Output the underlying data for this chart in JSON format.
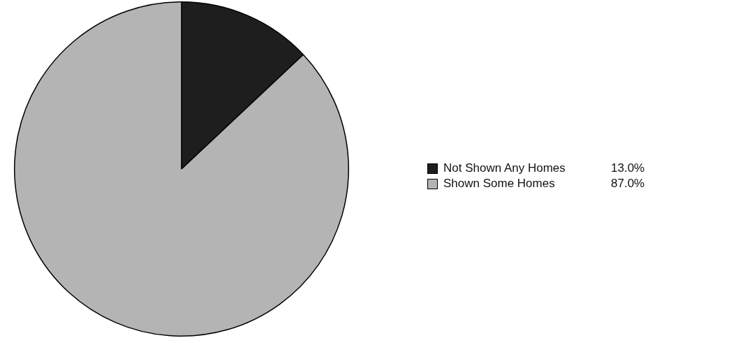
{
  "chart_data": {
    "type": "pie",
    "categories": [
      "Not Shown Any Homes",
      "Shown Some Homes"
    ],
    "values": [
      13.0,
      87.0
    ],
    "colors": [
      "#1e1e1e",
      "#b4b4b4"
    ],
    "value_labels": [
      "13.0%",
      "87.0%"
    ],
    "legend": "right"
  }
}
